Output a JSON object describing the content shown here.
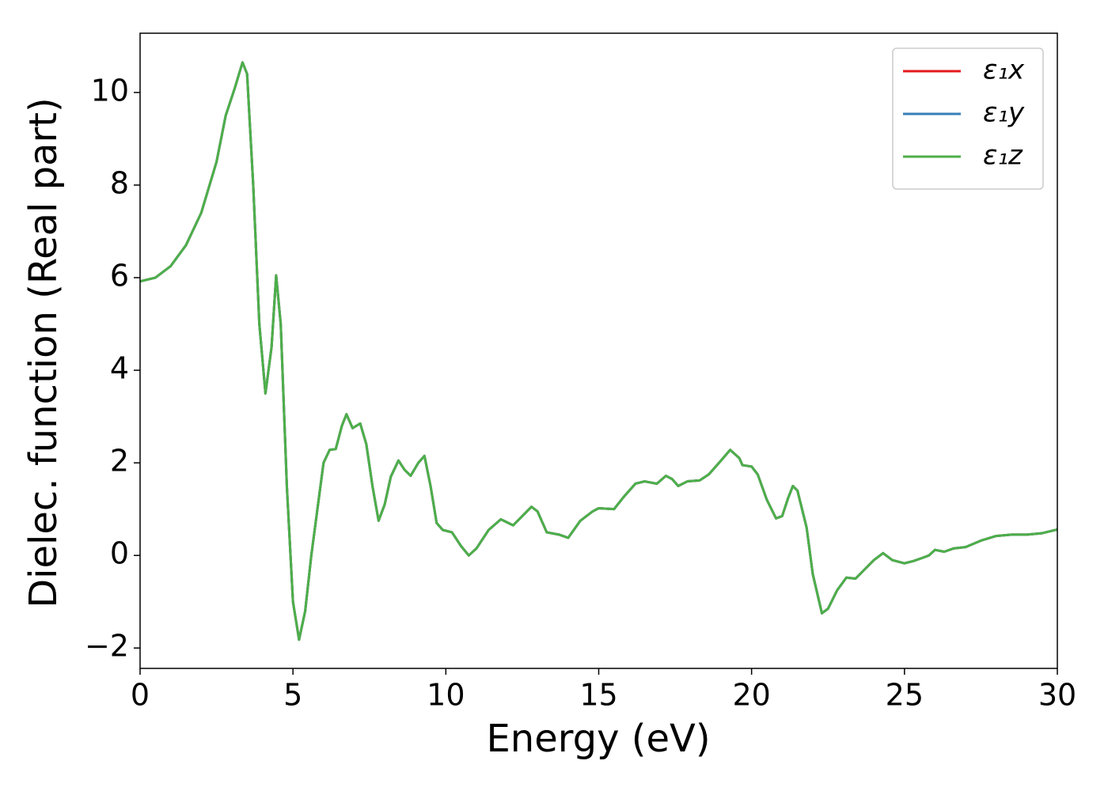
{
  "chart_data": {
    "type": "line",
    "xlabel": "Energy (eV)",
    "ylabel": "Dielec. function (Real part)",
    "x": [
      0,
      0.5,
      1,
      1.5,
      2,
      2.5,
      2.8,
      3.1,
      3.35,
      3.5,
      3.7,
      3.9,
      4.1,
      4.3,
      4.45,
      4.6,
      4.8,
      5.0,
      5.2,
      5.4,
      5.6,
      5.8,
      6.0,
      6.2,
      6.4,
      6.6,
      6.75,
      6.95,
      7.2,
      7.4,
      7.6,
      7.8,
      8.0,
      8.2,
      8.45,
      8.65,
      8.85,
      9.1,
      9.3,
      9.5,
      9.7,
      9.9,
      10.2,
      10.5,
      10.75,
      11.0,
      11.4,
      11.8,
      12.2,
      12.5,
      12.8,
      13.0,
      13.3,
      13.7,
      14.0,
      14.4,
      14.8,
      15.0,
      15.5,
      15.8,
      16.2,
      16.5,
      16.9,
      17.2,
      17.4,
      17.6,
      17.9,
      18.3,
      18.6,
      19.0,
      19.3,
      19.6,
      19.7,
      20.0,
      20.2,
      20.5,
      20.8,
      21.0,
      21.2,
      21.35,
      21.5,
      21.8,
      22.0,
      22.3,
      22.5,
      22.8,
      23.1,
      23.4,
      23.7,
      24.0,
      24.3,
      24.6,
      25.0,
      25.3,
      25.6,
      25.8,
      26.0,
      26.3,
      26.6,
      27.0,
      27.5,
      28.0,
      28.5,
      29.0,
      29.5,
      30.0
    ],
    "series": [
      {
        "name": "ε₁x",
        "color": "#e41a1c",
        "values": [
          5.92,
          6.0,
          6.25,
          6.7,
          7.4,
          8.5,
          9.5,
          10.1,
          10.65,
          10.4,
          8.0,
          5.0,
          3.5,
          4.5,
          6.05,
          5.0,
          1.5,
          -1.0,
          -1.82,
          -1.2,
          0.0,
          1.0,
          2.0,
          2.28,
          2.3,
          2.8,
          3.05,
          2.75,
          2.85,
          2.4,
          1.5,
          0.75,
          1.1,
          1.7,
          2.05,
          1.85,
          1.72,
          2.0,
          2.15,
          1.5,
          0.7,
          0.55,
          0.5,
          0.2,
          0.0,
          0.15,
          0.55,
          0.78,
          0.65,
          0.85,
          1.05,
          0.95,
          0.5,
          0.45,
          0.38,
          0.75,
          0.95,
          1.02,
          1.0,
          1.25,
          1.55,
          1.6,
          1.55,
          1.72,
          1.65,
          1.5,
          1.6,
          1.62,
          1.75,
          2.05,
          2.28,
          2.1,
          1.95,
          1.92,
          1.75,
          1.2,
          0.8,
          0.85,
          1.25,
          1.5,
          1.4,
          0.6,
          -0.4,
          -1.25,
          -1.15,
          -0.75,
          -0.48,
          -0.5,
          -0.3,
          -0.1,
          0.05,
          -0.1,
          -0.17,
          -0.12,
          -0.05,
          0.0,
          0.12,
          0.08,
          0.15,
          0.18,
          0.32,
          0.42,
          0.45,
          0.45,
          0.48,
          0.56
        ]
      },
      {
        "name": "ε₁y",
        "color": "#377eb8",
        "values": [
          5.92,
          6.0,
          6.25,
          6.7,
          7.4,
          8.5,
          9.5,
          10.1,
          10.65,
          10.4,
          8.0,
          5.0,
          3.5,
          4.5,
          6.05,
          5.0,
          1.5,
          -1.0,
          -1.82,
          -1.2,
          0.0,
          1.0,
          2.0,
          2.28,
          2.3,
          2.8,
          3.05,
          2.75,
          2.85,
          2.4,
          1.5,
          0.75,
          1.1,
          1.7,
          2.05,
          1.85,
          1.72,
          2.0,
          2.15,
          1.5,
          0.7,
          0.55,
          0.5,
          0.2,
          0.0,
          0.15,
          0.55,
          0.78,
          0.65,
          0.85,
          1.05,
          0.95,
          0.5,
          0.45,
          0.38,
          0.75,
          0.95,
          1.02,
          1.0,
          1.25,
          1.55,
          1.6,
          1.55,
          1.72,
          1.65,
          1.5,
          1.6,
          1.62,
          1.75,
          2.05,
          2.28,
          2.1,
          1.95,
          1.92,
          1.75,
          1.2,
          0.8,
          0.85,
          1.25,
          1.5,
          1.4,
          0.6,
          -0.4,
          -1.25,
          -1.15,
          -0.75,
          -0.48,
          -0.5,
          -0.3,
          -0.1,
          0.05,
          -0.1,
          -0.17,
          -0.12,
          -0.05,
          0.0,
          0.12,
          0.08,
          0.15,
          0.18,
          0.32,
          0.42,
          0.45,
          0.45,
          0.48,
          0.56
        ]
      },
      {
        "name": "ε₁z",
        "color": "#4daf4a",
        "values": [
          5.92,
          6.0,
          6.25,
          6.7,
          7.4,
          8.5,
          9.5,
          10.1,
          10.65,
          10.4,
          8.0,
          5.0,
          3.5,
          4.5,
          6.05,
          5.0,
          1.5,
          -1.0,
          -1.82,
          -1.2,
          0.0,
          1.0,
          2.0,
          2.28,
          2.3,
          2.8,
          3.05,
          2.75,
          2.85,
          2.4,
          1.5,
          0.75,
          1.1,
          1.7,
          2.05,
          1.85,
          1.72,
          2.0,
          2.15,
          1.5,
          0.7,
          0.55,
          0.5,
          0.2,
          0.0,
          0.15,
          0.55,
          0.78,
          0.65,
          0.85,
          1.05,
          0.95,
          0.5,
          0.45,
          0.38,
          0.75,
          0.95,
          1.02,
          1.0,
          1.25,
          1.55,
          1.6,
          1.55,
          1.72,
          1.65,
          1.5,
          1.6,
          1.62,
          1.75,
          2.05,
          2.28,
          2.1,
          1.95,
          1.92,
          1.75,
          1.2,
          0.8,
          0.85,
          1.25,
          1.5,
          1.4,
          0.6,
          -0.4,
          -1.25,
          -1.15,
          -0.75,
          -0.48,
          -0.5,
          -0.3,
          -0.1,
          0.05,
          -0.1,
          -0.17,
          -0.12,
          -0.05,
          0.0,
          0.12,
          0.08,
          0.15,
          0.18,
          0.32,
          0.42,
          0.45,
          0.45,
          0.48,
          0.56
        ]
      }
    ],
    "xlim": [
      0,
      30
    ],
    "xticks": [
      0,
      5,
      10,
      15,
      20,
      25,
      30
    ],
    "ylim": [
      -2.44,
      11.28
    ],
    "yticks": [
      {
        "value": -2,
        "label": "−2"
      },
      0,
      2,
      4,
      6,
      8,
      10
    ],
    "legend": "upper right",
    "grid": false
  }
}
